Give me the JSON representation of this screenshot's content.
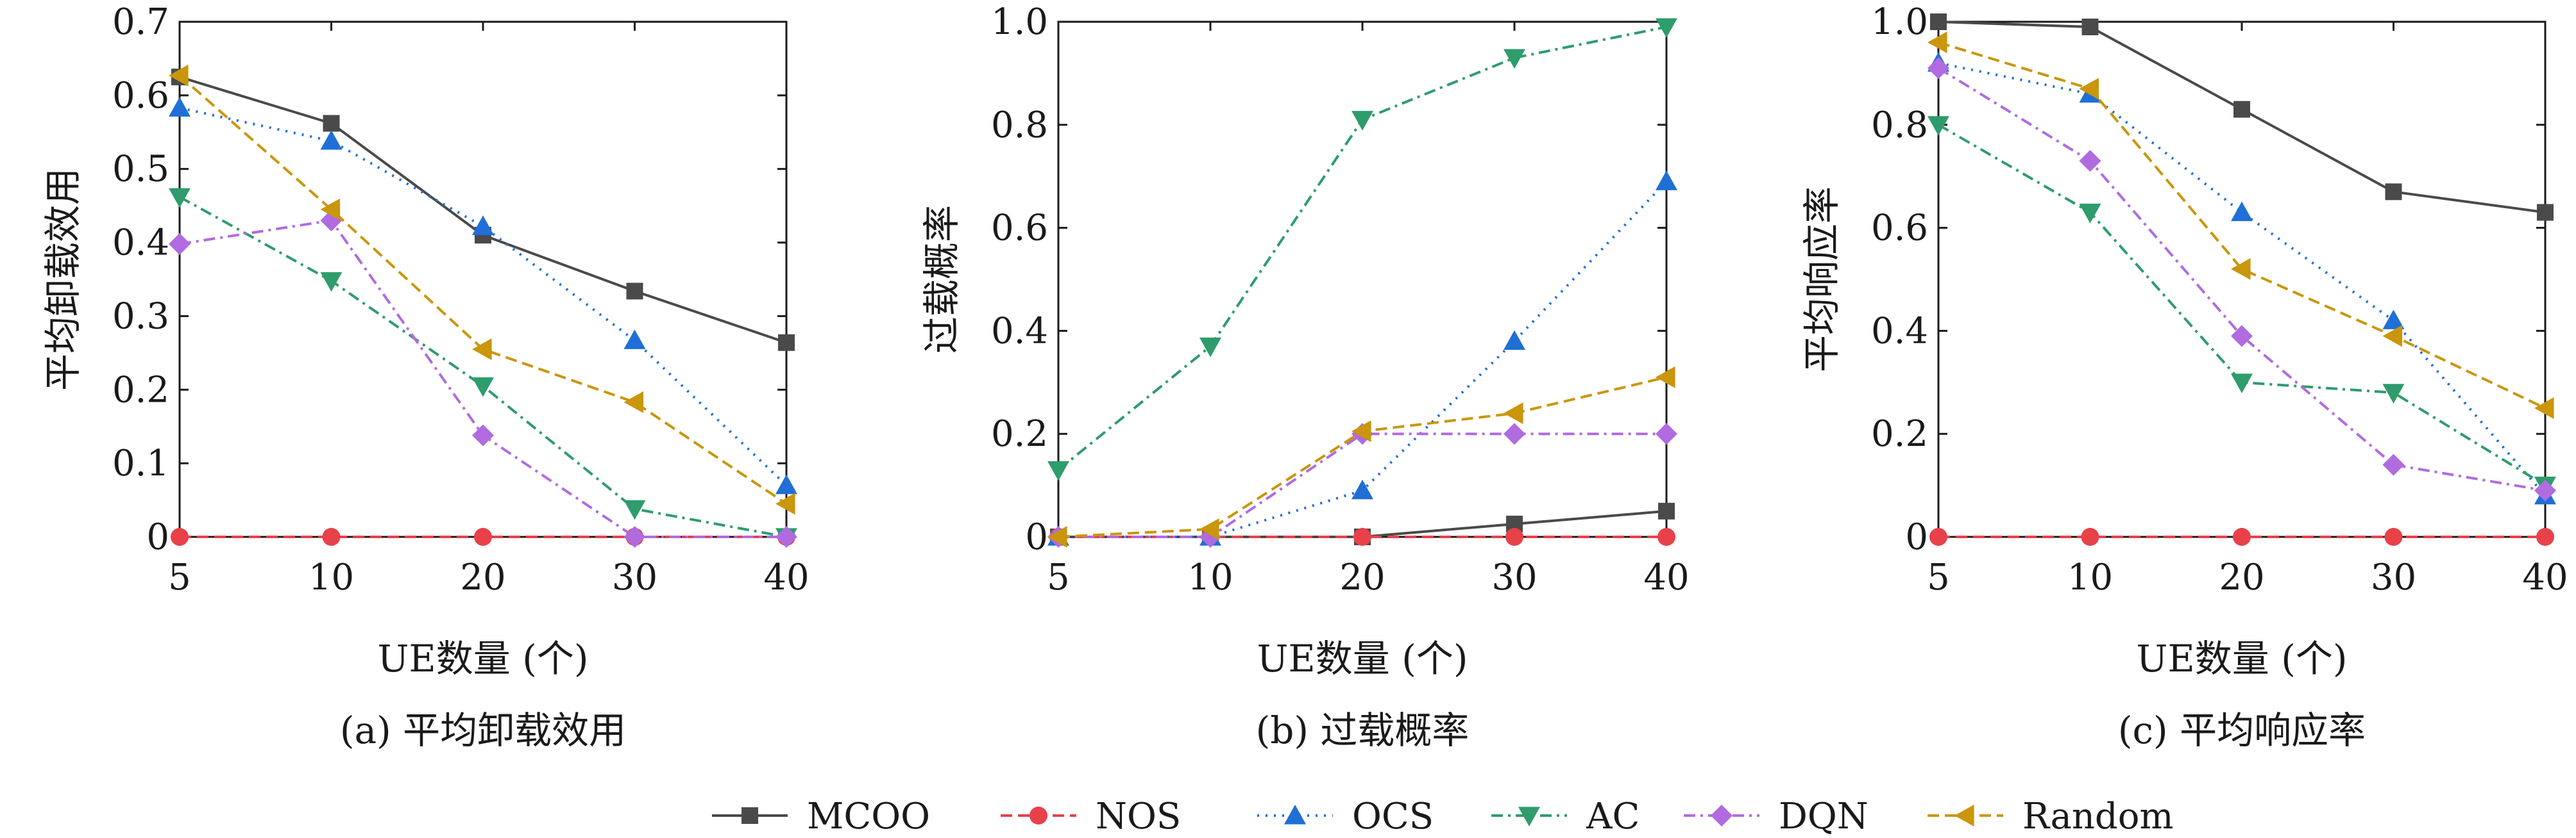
{
  "figure": {
    "legend": [
      {
        "name": "MCOO",
        "color": "#4a4a4a",
        "marker": "square",
        "dash": "solid"
      },
      {
        "name": "NOS",
        "color": "#e8414a",
        "marker": "circle",
        "dash": "dashed"
      },
      {
        "name": "OCS",
        "color": "#1f6fd6",
        "marker": "triangle-up",
        "dash": "dotted"
      },
      {
        "name": "AC",
        "color": "#2e9c6c",
        "marker": "triangle-down",
        "dash": "dashdot"
      },
      {
        "name": "DQN",
        "color": "#b06be0",
        "marker": "diamond",
        "dash": "dashdot"
      },
      {
        "name": "Random",
        "color": "#c9960c",
        "marker": "triangle-left",
        "dash": "dashed"
      }
    ],
    "legend_position": "bottom-center"
  },
  "chart_data": [
    {
      "type": "line",
      "subtitle": "(a) 平均卸载效用",
      "xlabel": "UE数量 (个)",
      "ylabel": "平均卸载效用",
      "categories": [
        "5",
        "10",
        "20",
        "30",
        "40"
      ],
      "ylim": [
        0,
        0.7
      ],
      "yticks": [
        "0",
        "0.1",
        "0.2",
        "0.3",
        "0.4",
        "0.5",
        "0.6",
        "0.7"
      ],
      "grid": false,
      "series": [
        {
          "name": "MCOO",
          "values": [
            0.625,
            0.562,
            0.41,
            0.334,
            0.264
          ]
        },
        {
          "name": "NOS",
          "values": [
            0,
            0,
            0,
            0,
            0
          ]
        },
        {
          "name": "OCS",
          "values": [
            0.583,
            0.538,
            0.422,
            0.267,
            0.07
          ]
        },
        {
          "name": "AC",
          "values": [
            0.462,
            0.348,
            0.205,
            0.038,
            0
          ]
        },
        {
          "name": "DQN",
          "values": [
            0.398,
            0.43,
            0.138,
            0,
            0
          ]
        },
        {
          "name": "Random",
          "values": [
            0.627,
            0.445,
            0.255,
            0.183,
            0.045
          ]
        }
      ]
    },
    {
      "type": "line",
      "subtitle": "(b) 过载概率",
      "xlabel": "UE数量 (个)",
      "ylabel": "过载概率",
      "categories": [
        "5",
        "10",
        "20",
        "30",
        "40"
      ],
      "ylim": [
        0,
        1
      ],
      "yticks": [
        "0",
        "0.2",
        "0.4",
        "0.6",
        "0.8",
        "1.0"
      ],
      "grid": false,
      "series": [
        {
          "name": "MCOO",
          "values": [
            0,
            0,
            0,
            0.025,
            0.05
          ]
        },
        {
          "name": "NOS",
          "values": [
            0,
            0,
            0,
            0,
            0
          ]
        },
        {
          "name": "OCS",
          "values": [
            0,
            0,
            0.09,
            0.38,
            0.69
          ]
        },
        {
          "name": "AC",
          "values": [
            0.13,
            0.37,
            0.81,
            0.93,
            0.99
          ]
        },
        {
          "name": "DQN",
          "values": [
            0,
            0,
            0.2,
            0.2,
            0.2
          ]
        },
        {
          "name": "Random",
          "values": [
            0,
            0.015,
            0.205,
            0.24,
            0.31
          ]
        }
      ]
    },
    {
      "type": "line",
      "subtitle": "(c) 平均响应率",
      "xlabel": "UE数量 (个)",
      "ylabel": "平均响应率",
      "categories": [
        "5",
        "10",
        "20",
        "30",
        "40"
      ],
      "ylim": [
        0,
        1
      ],
      "yticks": [
        "0",
        "0.2",
        "0.4",
        "0.6",
        "0.8",
        "1.0"
      ],
      "grid": false,
      "series": [
        {
          "name": "MCOO",
          "values": [
            1.0,
            0.99,
            0.83,
            0.67,
            0.63
          ]
        },
        {
          "name": "NOS",
          "values": [
            0,
            0,
            0,
            0,
            0
          ]
        },
        {
          "name": "OCS",
          "values": [
            0.92,
            0.86,
            0.63,
            0.42,
            0.08
          ]
        },
        {
          "name": "AC",
          "values": [
            0.8,
            0.63,
            0.3,
            0.28,
            0.1
          ]
        },
        {
          "name": "DQN",
          "values": [
            0.91,
            0.73,
            0.39,
            0.14,
            0.09
          ]
        },
        {
          "name": "Random",
          "values": [
            0.96,
            0.87,
            0.52,
            0.39,
            0.25
          ]
        }
      ]
    }
  ]
}
